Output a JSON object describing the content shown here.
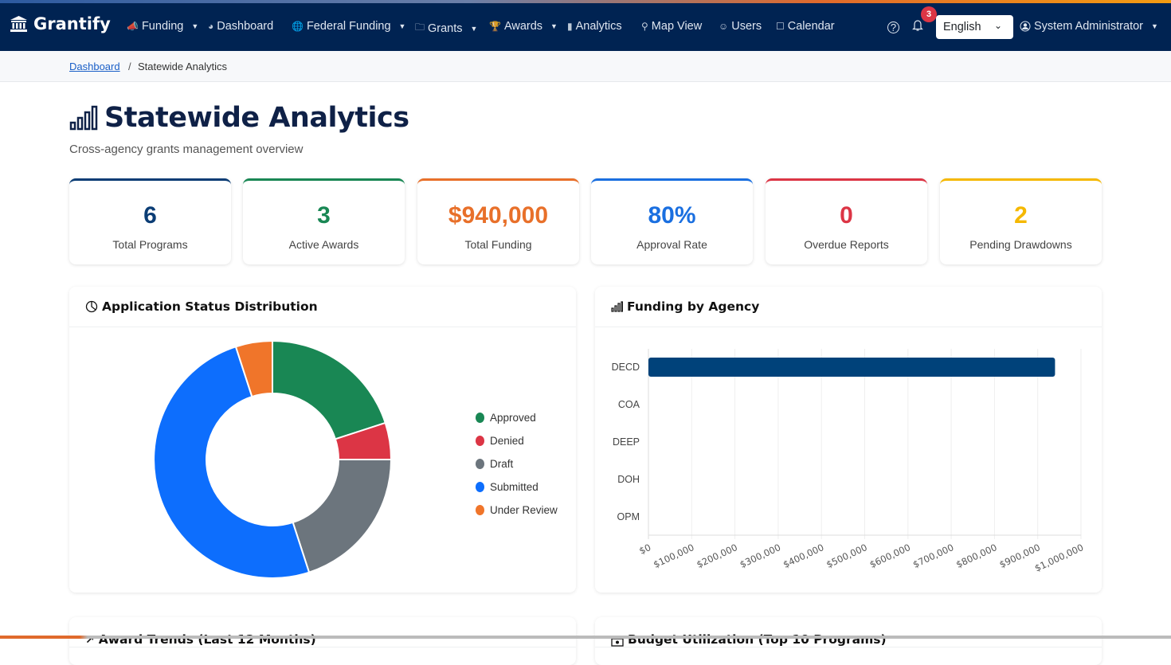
{
  "nav": {
    "brand": "Grantify",
    "items": [
      {
        "label": "Funding",
        "icon": "megaphone-icon",
        "dropdown": true
      },
      {
        "label": "Dashboard",
        "icon": "speedometer-icon",
        "dropdown": false
      },
      {
        "label": "Federal Funding",
        "icon": "globe-icon",
        "dropdown": true
      },
      {
        "label": "Grants",
        "icon": "folder-icon",
        "dropdown": true
      },
      {
        "label": "Awards",
        "icon": "trophy-icon",
        "dropdown": true
      },
      {
        "label": "Analytics",
        "icon": "bar-chart-icon",
        "dropdown": false
      },
      {
        "label": "Map View",
        "icon": "map-pin-icon",
        "dropdown": false
      },
      {
        "label": "Users",
        "icon": "users-icon",
        "dropdown": false
      },
      {
        "label": "Calendar",
        "icon": "calendar-icon",
        "dropdown": false
      }
    ],
    "notifications": "3",
    "language": "English",
    "user": "System Administrator"
  },
  "breadcrumb": {
    "home": "Dashboard",
    "separator": "/",
    "current": "Statewide Analytics"
  },
  "page": {
    "title": "Statewide Analytics",
    "subtitle": "Cross-agency grants management overview"
  },
  "kpis": [
    {
      "value": "6",
      "label": "Total Programs",
      "color": "#0b3d75"
    },
    {
      "value": "3",
      "label": "Active Awards",
      "color": "#198754"
    },
    {
      "value": "$940,000",
      "label": "Total Funding",
      "color": "#e8702a"
    },
    {
      "value": "80%",
      "label": "Approval Rate",
      "color": "#1a6fe0"
    },
    {
      "value": "0",
      "label": "Overdue Reports",
      "color": "#dc3545"
    },
    {
      "value": "2",
      "label": "Pending Drawdowns",
      "color": "#f5b800"
    }
  ],
  "cards": {
    "status": "Application Status Distribution",
    "agency": "Funding by Agency",
    "trends": "Award Trends (Last 12 Months)",
    "budget": "Budget Utilization (Top 10 Programs)"
  },
  "chart_data": [
    {
      "type": "pie",
      "donut": true,
      "title": "Application Status Distribution",
      "legend": "right",
      "categories": [
        "Approved",
        "Denied",
        "Draft",
        "Submitted",
        "Under Review"
      ],
      "values": [
        4,
        1,
        4,
        10,
        1
      ],
      "colors": [
        "#198754",
        "#dc3545",
        "#6c757d",
        "#0d6efd",
        "#f0752a"
      ]
    },
    {
      "type": "bar",
      "orientation": "horizontal",
      "title": "Funding by Agency",
      "categories": [
        "DECD",
        "COA",
        "DEEP",
        "DOH",
        "OPM"
      ],
      "values": [
        940000,
        0,
        0,
        0,
        0
      ],
      "xlim": [
        0,
        1000000
      ],
      "xticks": [
        "$0",
        "$100,000",
        "$200,000",
        "$300,000",
        "$400,000",
        "$500,000",
        "$600,000",
        "$700,000",
        "$800,000",
        "$900,000",
        "$1,000,000"
      ],
      "color": "#00427a",
      "grid": true
    }
  ]
}
